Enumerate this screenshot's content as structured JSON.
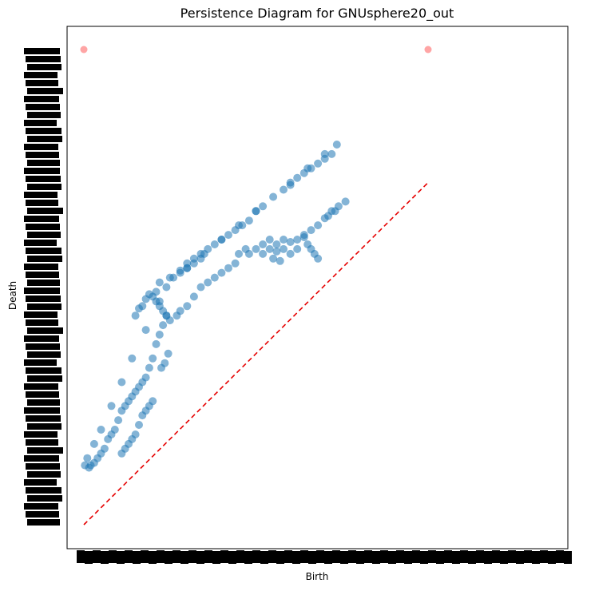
{
  "chart_data": {
    "type": "scatter",
    "title": "Persistence Diagram for GNUsphere20_out",
    "xlabel": "Birth",
    "ylabel": "Death",
    "xlim": [
      0,
      100
    ],
    "ylim": [
      0,
      100
    ],
    "grid": false,
    "legend": "none",
    "tick_labels_overplotted": true,
    "colors": {
      "points": "#1f77b4",
      "infinite_points": "#ff7f7f",
      "diagonal": "#e60000",
      "axes": "#000000"
    },
    "series": [
      {
        "values_desc": "finite pairs",
        "points": [
          [
            0.3,
            12.5
          ],
          [
            1,
            14
          ],
          [
            3,
            17
          ],
          [
            5,
            20
          ],
          [
            8,
            25
          ],
          [
            11,
            30
          ],
          [
            14,
            35
          ],
          [
            18,
            41
          ],
          [
            22,
            47
          ],
          [
            25,
            52
          ],
          [
            24,
            50
          ],
          [
            22,
            51
          ],
          [
            21,
            49
          ],
          [
            20,
            48
          ],
          [
            19,
            48.5
          ],
          [
            18,
            47.5
          ],
          [
            17,
            46
          ],
          [
            16,
            45.5
          ],
          [
            15,
            44
          ],
          [
            30,
            54
          ],
          [
            35,
            57
          ],
          [
            40,
            60
          ],
          [
            45,
            63
          ],
          [
            50,
            66
          ],
          [
            55,
            69
          ],
          [
            60,
            72
          ],
          [
            65,
            75
          ],
          [
            70,
            78
          ],
          [
            73.5,
            80
          ],
          [
            72,
            78
          ],
          [
            70,
            77
          ],
          [
            68,
            76
          ],
          [
            66,
            75
          ],
          [
            64,
            74
          ],
          [
            62,
            73
          ],
          [
            60,
            71.5
          ],
          [
            58,
            70.5
          ],
          [
            52,
            67
          ],
          [
            50,
            66
          ],
          [
            48,
            64
          ],
          [
            46,
            63
          ],
          [
            44,
            62
          ],
          [
            42,
            61
          ],
          [
            40,
            60
          ],
          [
            38,
            59
          ],
          [
            36,
            58
          ],
          [
            34,
            57
          ],
          [
            32,
            56
          ],
          [
            30,
            55
          ],
          [
            28,
            53.5
          ],
          [
            26,
            52
          ],
          [
            28,
            53
          ],
          [
            30,
            54
          ],
          [
            32,
            55
          ],
          [
            34,
            56
          ],
          [
            45,
            57
          ],
          [
            47,
            58
          ],
          [
            48,
            57
          ],
          [
            50,
            58
          ],
          [
            52,
            59
          ],
          [
            54,
            60
          ],
          [
            56,
            59
          ],
          [
            58,
            60
          ],
          [
            60,
            59.5
          ],
          [
            62,
            60
          ],
          [
            64,
            60.5
          ],
          [
            65,
            59
          ],
          [
            66,
            58
          ],
          [
            67,
            57
          ],
          [
            68,
            56
          ],
          [
            52,
            57
          ],
          [
            54,
            58
          ],
          [
            56,
            57.5
          ],
          [
            58,
            58
          ],
          [
            60,
            57
          ],
          [
            62,
            58
          ],
          [
            55,
            56
          ],
          [
            57,
            55.5
          ],
          [
            64,
            61
          ],
          [
            66,
            62
          ],
          [
            68,
            63
          ],
          [
            70,
            64.5
          ],
          [
            72,
            66
          ],
          [
            74,
            67
          ],
          [
            76,
            68
          ],
          [
            71,
            65
          ],
          [
            73,
            66
          ],
          [
            21,
            47
          ],
          [
            22,
            46
          ],
          [
            23,
            45
          ],
          [
            24,
            44
          ],
          [
            25,
            43
          ],
          [
            27,
            44
          ],
          [
            28,
            45
          ],
          [
            30,
            46
          ],
          [
            32,
            48
          ],
          [
            34,
            50
          ],
          [
            36,
            51
          ],
          [
            38,
            52
          ],
          [
            40,
            53
          ],
          [
            42,
            54
          ],
          [
            44,
            55
          ],
          [
            21,
            38
          ],
          [
            22,
            40
          ],
          [
            23,
            42
          ],
          [
            24,
            44
          ],
          [
            24.5,
            36
          ],
          [
            23.5,
            34
          ],
          [
            22.5,
            33
          ],
          [
            20,
            35
          ],
          [
            19,
            33
          ],
          [
            18,
            31
          ],
          [
            17,
            30
          ],
          [
            16,
            29
          ],
          [
            15,
            28
          ],
          [
            14,
            27
          ],
          [
            13,
            26
          ],
          [
            12,
            25
          ],
          [
            11,
            24
          ],
          [
            20,
            26
          ],
          [
            19,
            25
          ],
          [
            18,
            24
          ],
          [
            17,
            23
          ],
          [
            16,
            21
          ],
          [
            15,
            19
          ],
          [
            14,
            18
          ],
          [
            13,
            17
          ],
          [
            12,
            16
          ],
          [
            11,
            15
          ],
          [
            10,
            22
          ],
          [
            9,
            20
          ],
          [
            8,
            19
          ],
          [
            7,
            18
          ],
          [
            6,
            16
          ],
          [
            5,
            15
          ],
          [
            4,
            14
          ],
          [
            3,
            13
          ],
          [
            2,
            12.5
          ],
          [
            1.5,
            12
          ]
        ]
      },
      {
        "values_desc": "infinite pairs",
        "points": [
          [
            0,
            100
          ],
          [
            100,
            100
          ]
        ]
      }
    ]
  }
}
